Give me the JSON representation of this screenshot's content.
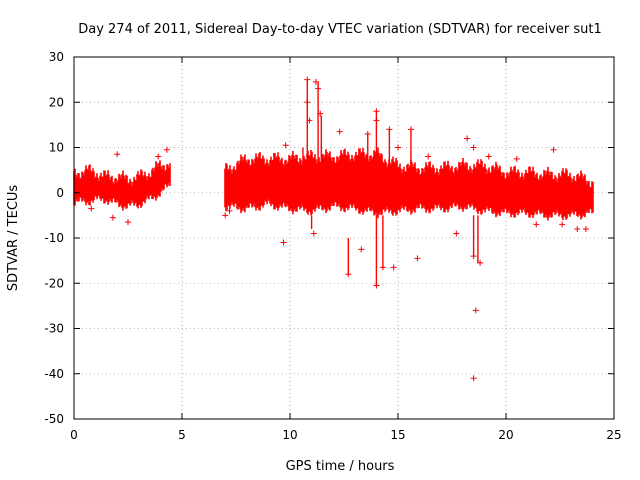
{
  "chart_data": {
    "type": "scatter",
    "title": "Day 274 of 2011, Sidereal Day-to-day VTEC variation (SDTVAR) for receiver sut1",
    "xlabel": "GPS time / hours",
    "ylabel": "SDTVAR / TECUs",
    "xlim": [
      0,
      25
    ],
    "ylim": [
      -50,
      30
    ],
    "xticks": [
      0,
      5,
      10,
      15,
      20,
      25
    ],
    "yticks": [
      -50,
      -40,
      -30,
      -20,
      -10,
      0,
      10,
      20,
      30
    ],
    "grid": true,
    "series_color": "#ff0000",
    "marker": "plus",
    "bands": [
      {
        "x": [
          0.0,
          0.5,
          1.0,
          1.5,
          2.0,
          2.5,
          3.0,
          3.5,
          4.0,
          4.4
        ],
        "center": [
          1.0,
          1.5,
          1.5,
          1.0,
          0.5,
          0.0,
          0.5,
          1.5,
          3.0,
          4.0
        ],
        "halfwidth": [
          3.0,
          3.5,
          3.0,
          2.5,
          3.0,
          3.0,
          3.0,
          3.0,
          3.0,
          2.5
        ]
      },
      {
        "x": [
          7.0,
          8.0,
          9.0,
          10.0,
          11.0,
          12.0,
          13.0,
          14.0,
          15.0,
          16.0,
          17.0,
          18.0,
          19.0,
          20.0,
          21.0,
          22.0,
          23.0,
          24.0
        ],
        "center": [
          1.0,
          2.0,
          2.5,
          2.0,
          2.0,
          2.5,
          2.5,
          2.0,
          1.0,
          1.0,
          1.0,
          1.5,
          1.0,
          0.0,
          0.0,
          -0.5,
          -0.5,
          -1.0
        ],
        "halfwidth": [
          4.0,
          5.5,
          5.0,
          5.5,
          6.0,
          5.5,
          6.0,
          6.5,
          5.0,
          4.5,
          4.5,
          4.5,
          5.0,
          4.5,
          4.5,
          4.5,
          4.5,
          3.5
        ]
      }
    ],
    "points": [
      {
        "x": 10.8,
        "y": 25.0
      },
      {
        "x": 10.8,
        "y": 20.0
      },
      {
        "x": 10.9,
        "y": 16.0
      },
      {
        "x": 11.2,
        "y": 24.5
      },
      {
        "x": 11.3,
        "y": 23.0
      },
      {
        "x": 11.4,
        "y": 17.5
      },
      {
        "x": 12.3,
        "y": 13.5
      },
      {
        "x": 13.6,
        "y": 13.0
      },
      {
        "x": 14.0,
        "y": 18.0
      },
      {
        "x": 14.0,
        "y": 16.0
      },
      {
        "x": 14.6,
        "y": 14.0
      },
      {
        "x": 15.6,
        "y": 14.0
      },
      {
        "x": 18.2,
        "y": 12.0
      },
      {
        "x": 18.5,
        "y": 10.0
      },
      {
        "x": 22.2,
        "y": 9.5
      },
      {
        "x": 9.7,
        "y": -11.0
      },
      {
        "x": 12.7,
        "y": -18.0
      },
      {
        "x": 13.3,
        "y": -12.5
      },
      {
        "x": 14.0,
        "y": -20.5
      },
      {
        "x": 14.3,
        "y": -16.5
      },
      {
        "x": 14.8,
        "y": -16.5
      },
      {
        "x": 15.9,
        "y": -14.5
      },
      {
        "x": 18.8,
        "y": -15.5
      },
      {
        "x": 18.5,
        "y": -14.0
      },
      {
        "x": 18.6,
        "y": -26.0
      },
      {
        "x": 18.5,
        "y": -41.0
      },
      {
        "x": 23.3,
        "y": -8.0
      },
      {
        "x": 2.5,
        "y": -6.5
      },
      {
        "x": 1.8,
        "y": -5.5
      },
      {
        "x": 0.8,
        "y": -3.5
      },
      {
        "x": 4.3,
        "y": 9.5
      },
      {
        "x": 3.9,
        "y": 8.0
      },
      {
        "x": 2.0,
        "y": 8.5
      },
      {
        "x": 7.0,
        "y": -5.0
      },
      {
        "x": 9.8,
        "y": 10.5
      },
      {
        "x": 7.2,
        "y": -4.0
      },
      {
        "x": 17.7,
        "y": -9.0
      },
      {
        "x": 21.4,
        "y": -7.0
      },
      {
        "x": 23.7,
        "y": -8.0
      },
      {
        "x": 22.6,
        "y": -7.0
      },
      {
        "x": 20.5,
        "y": 7.5
      },
      {
        "x": 19.2,
        "y": 8.0
      },
      {
        "x": 15.0,
        "y": 10.0
      },
      {
        "x": 11.1,
        "y": -9.0
      },
      {
        "x": 16.4,
        "y": 8.0
      }
    ],
    "spikes": [
      {
        "x": 10.8,
        "y0": 5.0,
        "y1": 25.0
      },
      {
        "x": 11.3,
        "y0": 5.0,
        "y1": 24.5
      },
      {
        "x": 11.45,
        "y0": 5.0,
        "y1": 17.0
      },
      {
        "x": 12.7,
        "y0": -10.0,
        "y1": -18.0
      },
      {
        "x": 13.6,
        "y0": 5.0,
        "y1": 13.0
      },
      {
        "x": 14.0,
        "y0": 5.0,
        "y1": 18.0
      },
      {
        "x": 14.0,
        "y0": -5.0,
        "y1": -20.5
      },
      {
        "x": 14.3,
        "y0": -5.0,
        "y1": -16.5
      },
      {
        "x": 14.6,
        "y0": 5.0,
        "y1": 14.0
      },
      {
        "x": 15.6,
        "y0": 5.0,
        "y1": 14.0
      },
      {
        "x": 18.7,
        "y0": -5.0,
        "y1": -15.5
      },
      {
        "x": 18.5,
        "y0": -5.0,
        "y1": -14.0
      },
      {
        "x": 11.0,
        "y0": -5.0,
        "y1": -8.0
      },
      {
        "x": 10.6,
        "y0": 5.0,
        "y1": 10.0
      }
    ]
  }
}
